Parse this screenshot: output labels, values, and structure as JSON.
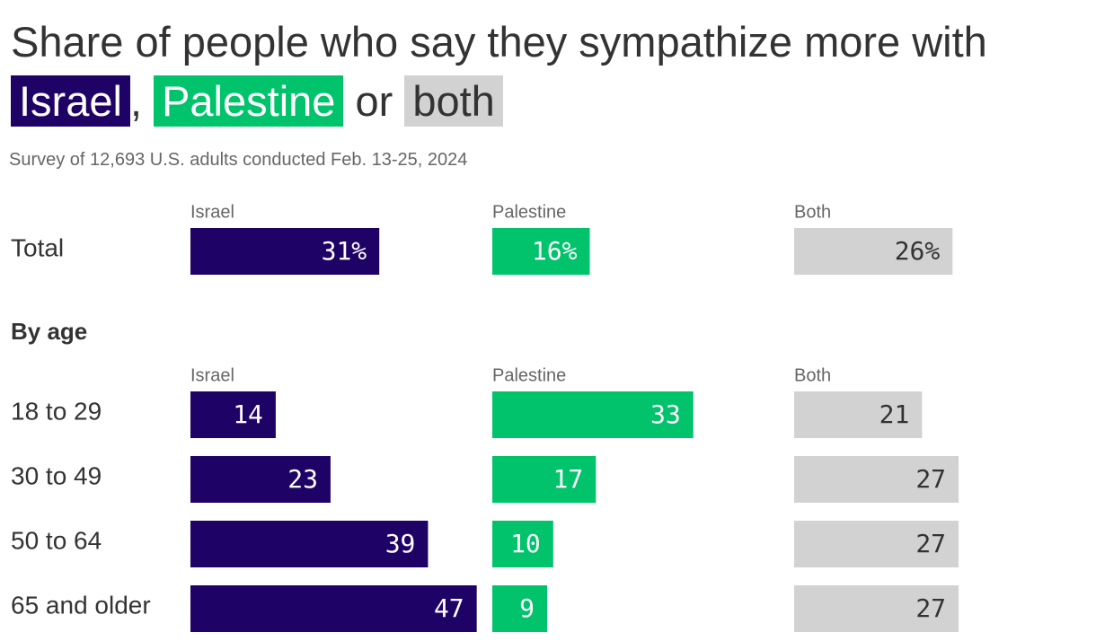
{
  "title": {
    "prefix": "Share of people who say they sympathize more with",
    "israel": "Israel",
    "comma": ",",
    "palestine": "Palestine",
    "or": "or",
    "both": "both"
  },
  "subtitle": "Survey of 12,693 U.S. adults conducted Feb. 13-25, 2024",
  "section_by_age": "By age",
  "colors": {
    "israel": "#1f0266",
    "palestine": "#00c36b",
    "both": "#d1d2d1",
    "text": "#333333",
    "muted": "#666666"
  },
  "chart_data": [
    {
      "type": "bar",
      "orientation": "horizontal",
      "value_unit": "percent",
      "categories": [
        "Total"
      ],
      "column_labels": [
        "Israel",
        "Palestine",
        "Both"
      ],
      "series": [
        {
          "name": "Israel",
          "values": [
            31
          ],
          "labels": [
            "31%"
          ]
        },
        {
          "name": "Palestine",
          "values": [
            16
          ],
          "labels": [
            "16%"
          ]
        },
        {
          "name": "Both",
          "values": [
            26
          ],
          "labels": [
            "26%"
          ]
        }
      ]
    },
    {
      "type": "bar",
      "orientation": "horizontal",
      "value_unit": "percent",
      "categories": [
        "18 to 29",
        "30 to 49",
        "50 to 64",
        "65 and older"
      ],
      "column_labels": [
        "Israel",
        "Palestine",
        "Both"
      ],
      "series": [
        {
          "name": "Israel",
          "values": [
            14,
            23,
            39,
            47
          ],
          "labels": [
            "14",
            "23",
            "39",
            "47"
          ]
        },
        {
          "name": "Palestine",
          "values": [
            33,
            17,
            10,
            9
          ],
          "labels": [
            "33",
            "17",
            "10",
            "9"
          ]
        },
        {
          "name": "Both",
          "values": [
            21,
            27,
            27,
            27
          ],
          "labels": [
            "21",
            "27",
            "27",
            "27"
          ]
        }
      ]
    }
  ]
}
